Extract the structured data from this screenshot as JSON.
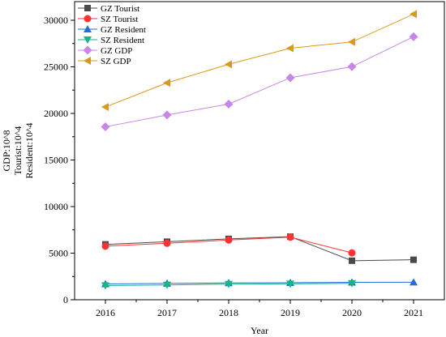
{
  "chart_data": {
    "type": "line",
    "xlabel": "Year",
    "ylabel_lines": [
      "GDP:10^8",
      "Tourist:10^4",
      "Resident:10^4"
    ],
    "x": [
      2016,
      2017,
      2018,
      2019,
      2020,
      2021
    ],
    "xlim": [
      2015.5,
      2021.5
    ],
    "ylim": [
      0,
      32000
    ],
    "yticks": [
      0,
      5000,
      10000,
      15000,
      20000,
      25000,
      30000
    ],
    "grid": false,
    "legend_position": "top-left",
    "series": [
      {
        "name": "GZ Tourist",
        "color": "#4a4a4a",
        "marker": "square",
        "values": [
          5940,
          6230,
          6530,
          6770,
          4190,
          4290
        ]
      },
      {
        "name": "SZ Tourist",
        "color": "#ff3333",
        "marker": "circle",
        "values": [
          5750,
          6060,
          6410,
          6720,
          5030,
          null
        ]
      },
      {
        "name": "GZ Resident",
        "color": "#1f6fd6",
        "marker": "triangle-up",
        "values": [
          1700,
          1750,
          1800,
          1830,
          1870,
          1880
        ]
      },
      {
        "name": "SZ Resident",
        "color": "#17b584",
        "marker": "triangle-down",
        "values": [
          1520,
          1590,
          1670,
          1710,
          1760,
          null
        ]
      },
      {
        "name": "GZ GDP",
        "color": "#c886e8",
        "marker": "diamond",
        "values": [
          18560,
          19840,
          21000,
          23830,
          25020,
          28230
        ]
      },
      {
        "name": "SZ GDP",
        "color": "#d89a1a",
        "marker": "triangle-left",
        "values": [
          20690,
          23280,
          25270,
          27000,
          27670,
          30660
        ]
      }
    ]
  }
}
